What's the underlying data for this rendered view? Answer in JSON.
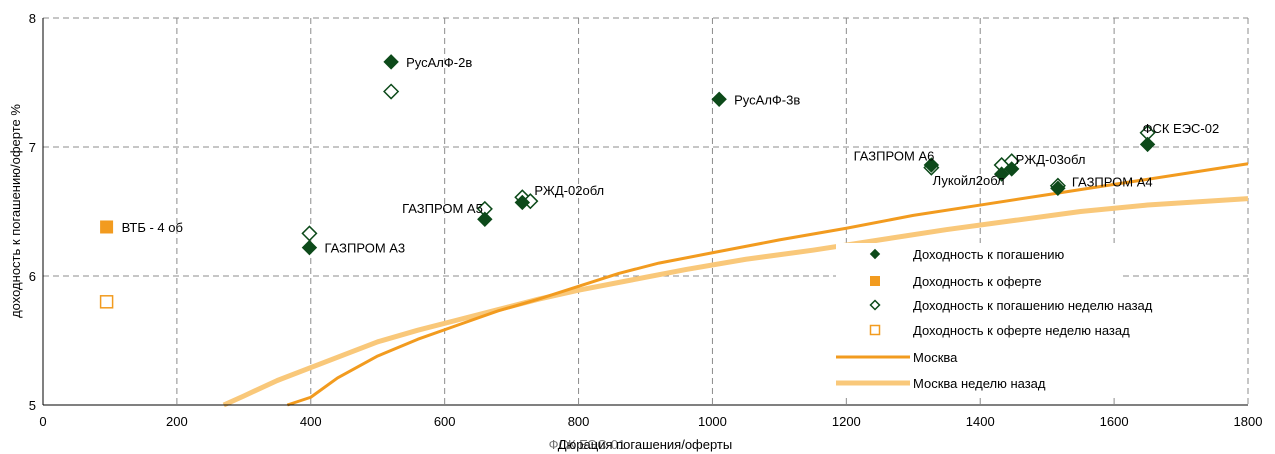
{
  "colors": {
    "dark_green": "#0d4a1a",
    "orange": "#f29b1f",
    "moscow_line": "#f29b1f",
    "moscow_week_ago": "#f9c87a",
    "grid": "#8c8c8c",
    "axis": "#000000"
  },
  "chart_data": {
    "type": "scatter",
    "xlabel": "Дюрация погашения/оферты",
    "xlabel_overlap": "ФСК ЕЭС-01",
    "ylabel": "доходность к погашению/оферте %",
    "xlim": [
      0,
      1800
    ],
    "ylim": [
      5,
      8
    ],
    "x_ticks": [
      "0",
      "200",
      "400",
      "600",
      "800",
      "1000",
      "1200",
      "1400",
      "1600",
      "1800"
    ],
    "y_ticks": [
      "5",
      "6",
      "7",
      "8"
    ],
    "grid": true,
    "legend_position": "bottom-right",
    "series": [
      {
        "name": "Доходность к погашению",
        "marker": "filled-diamond",
        "points": [
          {
            "x": 520,
            "y": 7.66,
            "label": "РусАлФ-2в"
          },
          {
            "x": 1010,
            "y": 7.37,
            "label": "РусАлФ-3в"
          },
          {
            "x": 398,
            "y": 6.22,
            "label": "ГАЗПРОМ А3"
          },
          {
            "x": 660,
            "y": 6.44,
            "label": ""
          },
          {
            "x": 716,
            "y": 6.57,
            "label": ""
          },
          {
            "x": 1327,
            "y": 6.86,
            "label": ""
          },
          {
            "x": 1432,
            "y": 6.79,
            "label": ""
          },
          {
            "x": 1447,
            "y": 6.83,
            "label": ""
          },
          {
            "x": 1516,
            "y": 6.68,
            "label": ""
          },
          {
            "x": 1650,
            "y": 7.02,
            "label": ""
          }
        ]
      },
      {
        "name": "Доходность к оферте",
        "marker": "filled-square",
        "points": [
          {
            "x": 95,
            "y": 6.38,
            "label": "ВТБ - 4 об"
          }
        ]
      },
      {
        "name": "Доходность к погашению неделю назад",
        "marker": "hollow-diamond",
        "points": [
          {
            "x": 520,
            "y": 7.43,
            "label": ""
          },
          {
            "x": 398,
            "y": 6.33,
            "label": ""
          },
          {
            "x": 660,
            "y": 6.52,
            "label": "ГАЗПРОМ А5"
          },
          {
            "x": 716,
            "y": 6.61,
            "label": ""
          },
          {
            "x": 728,
            "y": 6.58,
            "label": "РЖД-02обл"
          },
          {
            "x": 1327,
            "y": 6.84,
            "label": "ГАЗПРОМ А6"
          },
          {
            "x": 1432,
            "y": 6.86,
            "label": "Лукойл2обл"
          },
          {
            "x": 1447,
            "y": 6.89,
            "label": "РЖД-03обл"
          },
          {
            "x": 1516,
            "y": 6.7,
            "label": "ГАЗПРОМ А4"
          },
          {
            "x": 1650,
            "y": 7.11,
            "label": "ФСК ЕЭС-02"
          }
        ]
      },
      {
        "name": "Доходность к оферте неделю назад",
        "marker": "hollow-square",
        "points": [
          {
            "x": 95,
            "y": 5.8,
            "label": ""
          }
        ]
      },
      {
        "name": "Москва",
        "marker": "line",
        "points": [
          {
            "x": 365,
            "y": 4.95
          },
          {
            "x": 400,
            "y": 5.06
          },
          {
            "x": 440,
            "y": 5.21
          },
          {
            "x": 500,
            "y": 5.38
          },
          {
            "x": 560,
            "y": 5.51
          },
          {
            "x": 620,
            "y": 5.62
          },
          {
            "x": 680,
            "y": 5.73
          },
          {
            "x": 740,
            "y": 5.82
          },
          {
            "x": 800,
            "y": 5.92
          },
          {
            "x": 860,
            "y": 6.02
          },
          {
            "x": 920,
            "y": 6.1
          },
          {
            "x": 1000,
            "y": 6.18
          },
          {
            "x": 1100,
            "y": 6.28
          },
          {
            "x": 1200,
            "y": 6.37
          },
          {
            "x": 1300,
            "y": 6.47
          },
          {
            "x": 1400,
            "y": 6.55
          },
          {
            "x": 1500,
            "y": 6.63
          },
          {
            "x": 1600,
            "y": 6.71
          },
          {
            "x": 1700,
            "y": 6.79
          },
          {
            "x": 1800,
            "y": 6.87
          }
        ]
      },
      {
        "name": "Москва неделю назад",
        "marker": "line",
        "points": [
          {
            "x": 270,
            "y": 4.97
          },
          {
            "x": 300,
            "y": 5.07
          },
          {
            "x": 350,
            "y": 5.19
          },
          {
            "x": 400,
            "y": 5.29
          },
          {
            "x": 450,
            "y": 5.39
          },
          {
            "x": 500,
            "y": 5.49
          },
          {
            "x": 560,
            "y": 5.58
          },
          {
            "x": 620,
            "y": 5.66
          },
          {
            "x": 680,
            "y": 5.74
          },
          {
            "x": 740,
            "y": 5.82
          },
          {
            "x": 800,
            "y": 5.89
          },
          {
            "x": 880,
            "y": 5.97
          },
          {
            "x": 960,
            "y": 6.05
          },
          {
            "x": 1050,
            "y": 6.13
          },
          {
            "x": 1150,
            "y": 6.2
          },
          {
            "x": 1250,
            "y": 6.28
          },
          {
            "x": 1350,
            "y": 6.36
          },
          {
            "x": 1450,
            "y": 6.43
          },
          {
            "x": 1550,
            "y": 6.5
          },
          {
            "x": 1650,
            "y": 6.55
          },
          {
            "x": 1800,
            "y": 6.6
          }
        ]
      }
    ]
  }
}
